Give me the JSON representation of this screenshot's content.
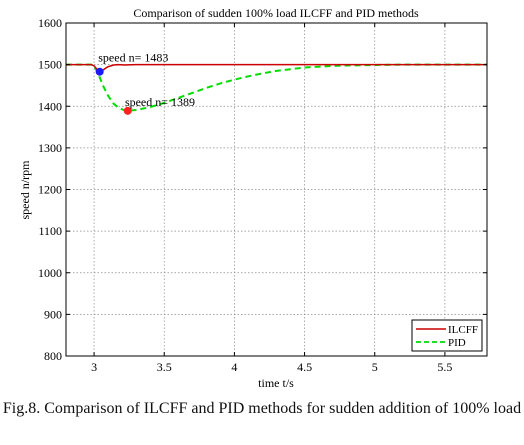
{
  "chart_data": {
    "type": "line",
    "title": "Comparison of sudden 100% load ILCFF and PID methods",
    "xlabel": "time t/s",
    "ylabel": "speed n/rpm",
    "xlim": [
      2.8,
      5.8
    ],
    "ylim": [
      800,
      1600
    ],
    "xticks": [
      3,
      3.5,
      4,
      4.5,
      5,
      5.5
    ],
    "xtick_labels": [
      "3",
      "3.5",
      "4",
      "4.5",
      "5",
      "5.5"
    ],
    "yticks": [
      800,
      900,
      1000,
      1100,
      1200,
      1300,
      1400,
      1500,
      1600
    ],
    "ytick_labels": [
      "800",
      "900",
      "1000",
      "1100",
      "1200",
      "1300",
      "1400",
      "1500",
      "1600"
    ],
    "grid": true,
    "legend_position": "bottom-right",
    "series": [
      {
        "name": "ILCFF",
        "color": "#cc0000",
        "style": "solid",
        "x": [
          2.8,
          2.98,
          3.0,
          3.02,
          3.04,
          3.06,
          3.08,
          3.1,
          3.12,
          3.14,
          3.17,
          3.22,
          3.3,
          3.4,
          5.8
        ],
        "y": [
          1500,
          1500,
          1497,
          1489,
          1483,
          1486,
          1491,
          1495,
          1497,
          1499,
          1500,
          1499,
          1500,
          1500,
          1500
        ]
      },
      {
        "name": "PID",
        "color": "#00dd00",
        "style": "dashed",
        "x": [
          2.8,
          2.98,
          3.0,
          3.03,
          3.06,
          3.1,
          3.14,
          3.18,
          3.22,
          3.24,
          3.3,
          3.4,
          3.5,
          3.6,
          3.7,
          3.8,
          3.9,
          4.0,
          4.1,
          4.2,
          4.3,
          4.4,
          4.5,
          4.6,
          4.7,
          4.8,
          5.0,
          5.2,
          5.4,
          5.8
        ],
        "y": [
          1500,
          1500,
          1497,
          1478,
          1452,
          1425,
          1406,
          1395,
          1390,
          1389,
          1391,
          1398,
          1408,
          1420,
          1432,
          1444,
          1455,
          1464,
          1472,
          1479,
          1485,
          1489,
          1493,
          1495,
          1497,
          1498,
          1499,
          1500,
          1500,
          1500
        ]
      }
    ],
    "markers": [
      {
        "x": 3.04,
        "y": 1483,
        "color": "#1a1aff"
      },
      {
        "x": 3.24,
        "y": 1389,
        "color": "#ff2222"
      }
    ],
    "annotations": [
      {
        "text": "speed n= 1483",
        "x": 3.03,
        "y": 1508
      },
      {
        "text": "speed n= 1389",
        "x": 3.22,
        "y": 1401
      }
    ]
  },
  "caption": "Fig.8. Comparison of ILCFF and PID methods for sudden addition of 100% load"
}
